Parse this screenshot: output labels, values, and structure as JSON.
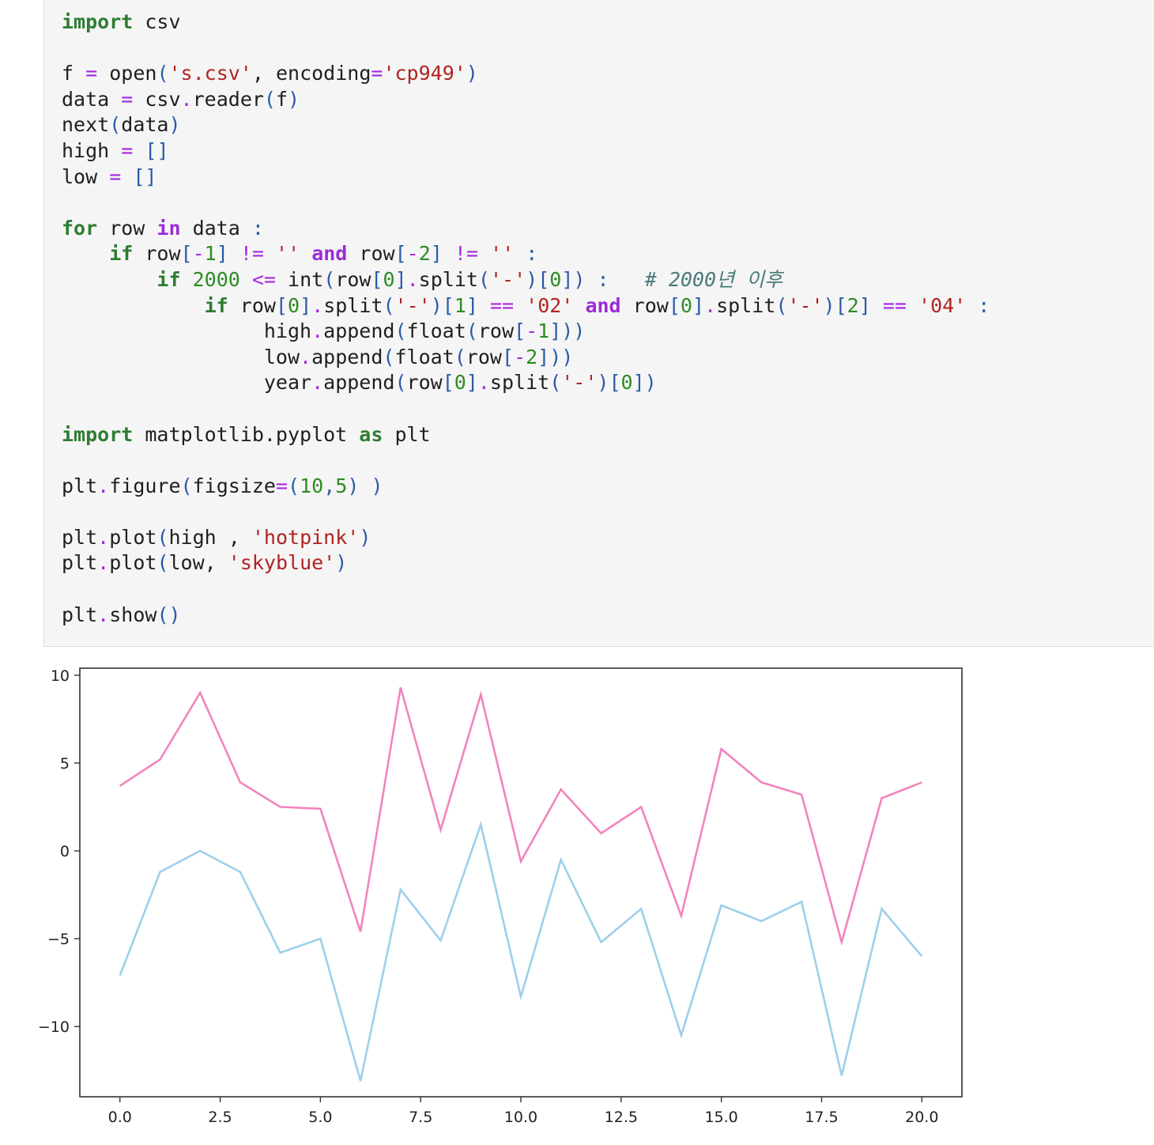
{
  "code_cell": {
    "lines": [
      [
        {
          "t": "import",
          "c": "k"
        },
        {
          "t": " csv",
          "c": ""
        }
      ],
      [],
      [
        {
          "t": "f ",
          "c": ""
        },
        {
          "t": "=",
          "c": "o"
        },
        {
          "t": " open",
          "c": ""
        },
        {
          "t": "(",
          "c": "p"
        },
        {
          "t": "'s.csv'",
          "c": "s"
        },
        {
          "t": ", encoding",
          "c": ""
        },
        {
          "t": "=",
          "c": "o"
        },
        {
          "t": "'cp949'",
          "c": "s"
        },
        {
          "t": ")",
          "c": "p"
        }
      ],
      [
        {
          "t": "data ",
          "c": ""
        },
        {
          "t": "=",
          "c": "o"
        },
        {
          "t": " csv",
          "c": ""
        },
        {
          "t": ".",
          "c": "o"
        },
        {
          "t": "reader",
          "c": ""
        },
        {
          "t": "(",
          "c": "p"
        },
        {
          "t": "f",
          "c": ""
        },
        {
          "t": ")",
          "c": "p"
        }
      ],
      [
        {
          "t": "next",
          "c": ""
        },
        {
          "t": "(",
          "c": "p"
        },
        {
          "t": "data",
          "c": ""
        },
        {
          "t": ")",
          "c": "p"
        }
      ],
      [
        {
          "t": "high ",
          "c": ""
        },
        {
          "t": "=",
          "c": "o"
        },
        {
          "t": " ",
          "c": ""
        },
        {
          "t": "[]",
          "c": "p"
        }
      ],
      [
        {
          "t": "low ",
          "c": ""
        },
        {
          "t": "=",
          "c": "o"
        },
        {
          "t": " ",
          "c": ""
        },
        {
          "t": "[]",
          "c": "p"
        }
      ],
      [],
      [
        {
          "t": "for",
          "c": "k"
        },
        {
          "t": " row ",
          "c": ""
        },
        {
          "t": "in",
          "c": "w"
        },
        {
          "t": " data ",
          "c": ""
        },
        {
          "t": ":",
          "c": "p"
        }
      ],
      [
        {
          "t": "    ",
          "c": ""
        },
        {
          "t": "if",
          "c": "k"
        },
        {
          "t": " row",
          "c": ""
        },
        {
          "t": "[",
          "c": "p"
        },
        {
          "t": "-",
          "c": "o"
        },
        {
          "t": "1",
          "c": "n"
        },
        {
          "t": "]",
          "c": "p"
        },
        {
          "t": " ",
          "c": ""
        },
        {
          "t": "!=",
          "c": "o"
        },
        {
          "t": " ",
          "c": ""
        },
        {
          "t": "''",
          "c": "s"
        },
        {
          "t": " ",
          "c": ""
        },
        {
          "t": "and",
          "c": "w"
        },
        {
          "t": " row",
          "c": ""
        },
        {
          "t": "[",
          "c": "p"
        },
        {
          "t": "-",
          "c": "o"
        },
        {
          "t": "2",
          "c": "n"
        },
        {
          "t": "]",
          "c": "p"
        },
        {
          "t": " ",
          "c": ""
        },
        {
          "t": "!=",
          "c": "o"
        },
        {
          "t": " ",
          "c": ""
        },
        {
          "t": "''",
          "c": "s"
        },
        {
          "t": " ",
          "c": ""
        },
        {
          "t": ":",
          "c": "p"
        }
      ],
      [
        {
          "t": "        ",
          "c": ""
        },
        {
          "t": "if",
          "c": "k"
        },
        {
          "t": " ",
          "c": ""
        },
        {
          "t": "2000",
          "c": "n"
        },
        {
          "t": " ",
          "c": ""
        },
        {
          "t": "<=",
          "c": "o"
        },
        {
          "t": " int",
          "c": ""
        },
        {
          "t": "(",
          "c": "p"
        },
        {
          "t": "row",
          "c": ""
        },
        {
          "t": "[",
          "c": "p"
        },
        {
          "t": "0",
          "c": "n"
        },
        {
          "t": "]",
          "c": "p"
        },
        {
          "t": ".",
          "c": "o"
        },
        {
          "t": "split",
          "c": ""
        },
        {
          "t": "(",
          "c": "p"
        },
        {
          "t": "'-'",
          "c": "s"
        },
        {
          "t": ")[",
          "c": "p"
        },
        {
          "t": "0",
          "c": "n"
        },
        {
          "t": "])",
          "c": "p"
        },
        {
          "t": " ",
          "c": ""
        },
        {
          "t": ":",
          "c": "p"
        },
        {
          "t": "   ",
          "c": ""
        },
        {
          "t": "# 2000년 이후",
          "c": "c"
        }
      ],
      [
        {
          "t": "            ",
          "c": ""
        },
        {
          "t": "if",
          "c": "k"
        },
        {
          "t": " row",
          "c": ""
        },
        {
          "t": "[",
          "c": "p"
        },
        {
          "t": "0",
          "c": "n"
        },
        {
          "t": "]",
          "c": "p"
        },
        {
          "t": ".",
          "c": "o"
        },
        {
          "t": "split",
          "c": ""
        },
        {
          "t": "(",
          "c": "p"
        },
        {
          "t": "'-'",
          "c": "s"
        },
        {
          "t": ")[",
          "c": "p"
        },
        {
          "t": "1",
          "c": "n"
        },
        {
          "t": "]",
          "c": "p"
        },
        {
          "t": " ",
          "c": ""
        },
        {
          "t": "==",
          "c": "o"
        },
        {
          "t": " ",
          "c": ""
        },
        {
          "t": "'02'",
          "c": "s"
        },
        {
          "t": " ",
          "c": ""
        },
        {
          "t": "and",
          "c": "w"
        },
        {
          "t": " row",
          "c": ""
        },
        {
          "t": "[",
          "c": "p"
        },
        {
          "t": "0",
          "c": "n"
        },
        {
          "t": "]",
          "c": "p"
        },
        {
          "t": ".",
          "c": "o"
        },
        {
          "t": "split",
          "c": ""
        },
        {
          "t": "(",
          "c": "p"
        },
        {
          "t": "'-'",
          "c": "s"
        },
        {
          "t": ")[",
          "c": "p"
        },
        {
          "t": "2",
          "c": "n"
        },
        {
          "t": "]",
          "c": "p"
        },
        {
          "t": " ",
          "c": ""
        },
        {
          "t": "==",
          "c": "o"
        },
        {
          "t": " ",
          "c": ""
        },
        {
          "t": "'04'",
          "c": "s"
        },
        {
          "t": " ",
          "c": ""
        },
        {
          "t": ":",
          "c": "p"
        }
      ],
      [
        {
          "t": "                 high",
          "c": ""
        },
        {
          "t": ".",
          "c": "o"
        },
        {
          "t": "append",
          "c": ""
        },
        {
          "t": "(",
          "c": "p"
        },
        {
          "t": "float",
          "c": ""
        },
        {
          "t": "(",
          "c": "p"
        },
        {
          "t": "row",
          "c": ""
        },
        {
          "t": "[",
          "c": "p"
        },
        {
          "t": "-",
          "c": "o"
        },
        {
          "t": "1",
          "c": "n"
        },
        {
          "t": "]))",
          "c": "p"
        }
      ],
      [
        {
          "t": "                 low",
          "c": ""
        },
        {
          "t": ".",
          "c": "o"
        },
        {
          "t": "append",
          "c": ""
        },
        {
          "t": "(",
          "c": "p"
        },
        {
          "t": "float",
          "c": ""
        },
        {
          "t": "(",
          "c": "p"
        },
        {
          "t": "row",
          "c": ""
        },
        {
          "t": "[",
          "c": "p"
        },
        {
          "t": "-",
          "c": "o"
        },
        {
          "t": "2",
          "c": "n"
        },
        {
          "t": "]))",
          "c": "p"
        }
      ],
      [
        {
          "t": "                 year",
          "c": ""
        },
        {
          "t": ".",
          "c": "o"
        },
        {
          "t": "append",
          "c": ""
        },
        {
          "t": "(",
          "c": "p"
        },
        {
          "t": "row",
          "c": ""
        },
        {
          "t": "[",
          "c": "p"
        },
        {
          "t": "0",
          "c": "n"
        },
        {
          "t": "]",
          "c": "p"
        },
        {
          "t": ".",
          "c": "o"
        },
        {
          "t": "split",
          "c": ""
        },
        {
          "t": "(",
          "c": "p"
        },
        {
          "t": "'-'",
          "c": "s"
        },
        {
          "t": ")[",
          "c": "p"
        },
        {
          "t": "0",
          "c": "n"
        },
        {
          "t": "])",
          "c": "p"
        }
      ],
      [],
      [
        {
          "t": "import",
          "c": "k"
        },
        {
          "t": " matplotlib.pyplot ",
          "c": ""
        },
        {
          "t": "as",
          "c": "k"
        },
        {
          "t": " plt",
          "c": ""
        }
      ],
      [],
      [
        {
          "t": "plt",
          "c": ""
        },
        {
          "t": ".",
          "c": "o"
        },
        {
          "t": "figure",
          "c": ""
        },
        {
          "t": "(",
          "c": "p"
        },
        {
          "t": "figsize",
          "c": ""
        },
        {
          "t": "=",
          "c": "o"
        },
        {
          "t": "(",
          "c": "p"
        },
        {
          "t": "10",
          "c": "n"
        },
        {
          "t": ",",
          "c": "p"
        },
        {
          "t": "5",
          "c": "n"
        },
        {
          "t": ")",
          "c": "p"
        },
        {
          "t": " ",
          "c": ""
        },
        {
          "t": ")",
          "c": "p"
        }
      ],
      [],
      [
        {
          "t": "plt",
          "c": ""
        },
        {
          "t": ".",
          "c": "o"
        },
        {
          "t": "plot",
          "c": ""
        },
        {
          "t": "(",
          "c": "p"
        },
        {
          "t": "high , ",
          "c": ""
        },
        {
          "t": "'hotpink'",
          "c": "s"
        },
        {
          "t": ")",
          "c": "p"
        }
      ],
      [
        {
          "t": "plt",
          "c": ""
        },
        {
          "t": ".",
          "c": "o"
        },
        {
          "t": "plot",
          "c": ""
        },
        {
          "t": "(",
          "c": "p"
        },
        {
          "t": "low, ",
          "c": ""
        },
        {
          "t": "'skyblue'",
          "c": "s"
        },
        {
          "t": ")",
          "c": "p"
        }
      ],
      [],
      [
        {
          "t": "plt",
          "c": ""
        },
        {
          "t": ".",
          "c": "o"
        },
        {
          "t": "show",
          "c": ""
        },
        {
          "t": "()",
          "c": "p"
        }
      ]
    ]
  },
  "chart_data": {
    "type": "line",
    "x": [
      0,
      1,
      2,
      3,
      4,
      5,
      6,
      7,
      8,
      9,
      10,
      11,
      12,
      13,
      14,
      15,
      16,
      17,
      18,
      19,
      20
    ],
    "series": [
      {
        "color": "#f284bd",
        "values": [
          3.7,
          5.2,
          9.0,
          3.9,
          2.5,
          2.4,
          -4.6,
          9.3,
          1.2,
          8.9,
          -0.6,
          3.5,
          1.0,
          2.5,
          -3.7,
          5.8,
          3.9,
          3.2,
          -5.2,
          3.0,
          3.9
        ]
      },
      {
        "color": "#9dd0eb",
        "values": [
          -7.1,
          -1.2,
          0.0,
          -1.2,
          -5.8,
          -5.0,
          -13.1,
          -2.2,
          -5.1,
          1.5,
          -8.3,
          -0.5,
          -5.2,
          -3.3,
          -10.5,
          -3.1,
          -4.0,
          -2.9,
          -12.8,
          -3.3,
          -6.0
        ]
      }
    ],
    "xlim": [
      -1,
      21
    ],
    "ylim": [
      -14,
      10.4
    ],
    "xticks": [
      0,
      2.5,
      5,
      7.5,
      10,
      12.5,
      15,
      17.5,
      20
    ],
    "xtick_labels": [
      "0.0",
      "2.5",
      "5.0",
      "7.5",
      "10.0",
      "12.5",
      "15.0",
      "17.5",
      "20.0"
    ],
    "yticks": [
      10,
      5,
      0,
      -5,
      -10
    ],
    "ytick_labels": [
      "10",
      "5",
      "0",
      "−5",
      "−10"
    ],
    "grid": false,
    "title": "",
    "xlabel": "",
    "ylabel": ""
  }
}
